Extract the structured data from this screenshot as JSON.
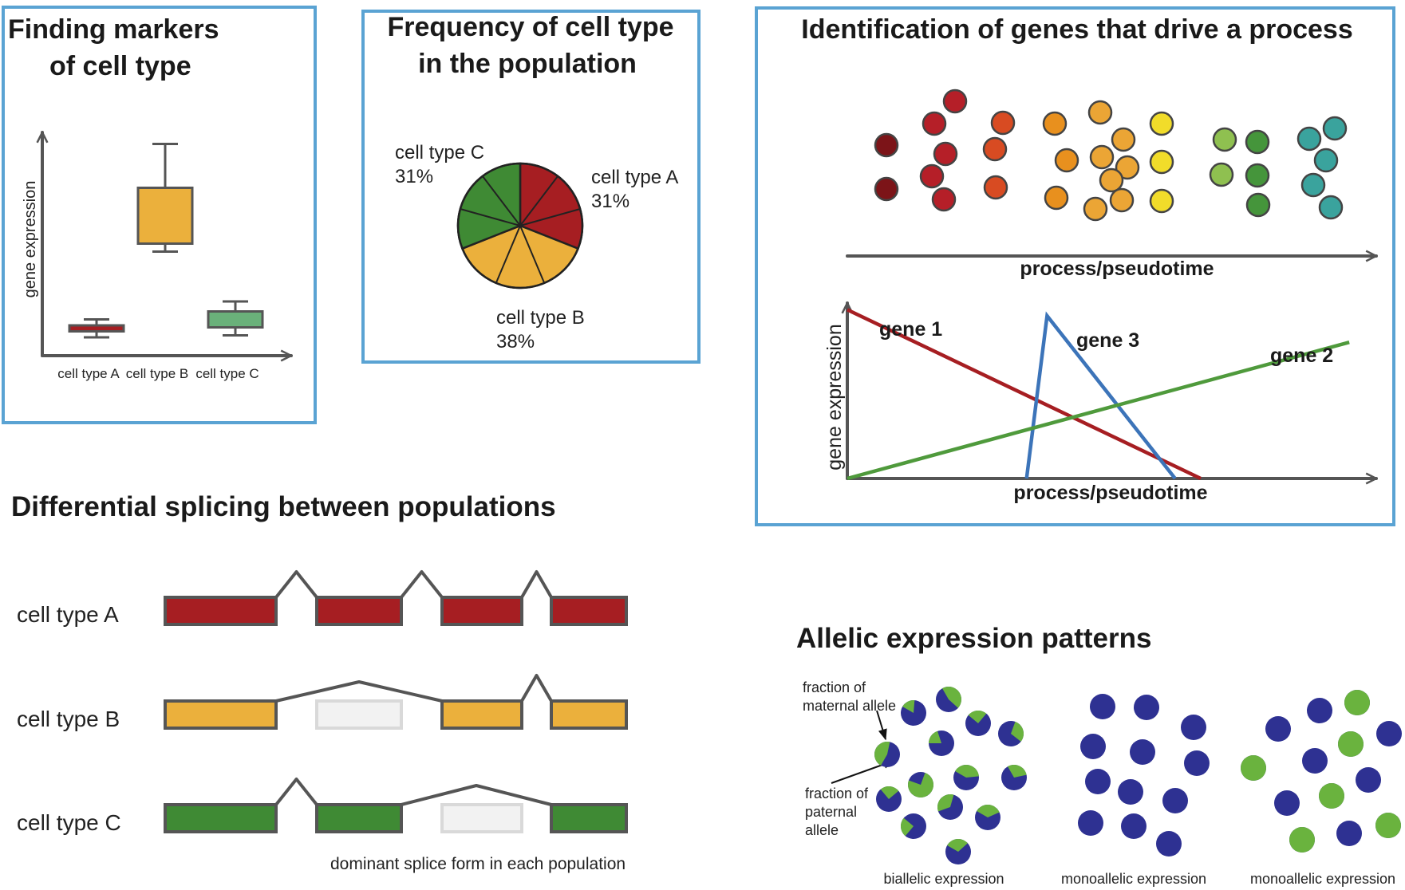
{
  "panels": {
    "markers": {
      "title_line1": "Finding markers",
      "title_line2": "of cell type",
      "ylabel": "gene expression",
      "categories": [
        "cell type A",
        "cell type B",
        "cell type C"
      ]
    },
    "frequency": {
      "title_line1": "Frequency of cell type",
      "title_line2": "in the population",
      "slices": [
        {
          "name": "cell type A",
          "pct": "31%",
          "value": 31,
          "color": "#a61e22"
        },
        {
          "name": "cell type B",
          "pct": "38%",
          "value": 38,
          "color": "#ebb03c"
        },
        {
          "name": "cell type C",
          "pct": "31%",
          "value": 31,
          "color": "#3f8a34"
        }
      ]
    },
    "process": {
      "title": "Identification of genes that drive a process",
      "xlabel_top": "process/pseudotime",
      "xlabel_bottom": "process/pseudotime",
      "ylabel": "gene expression",
      "genes": [
        {
          "name": "gene 1",
          "color": "#a61e22"
        },
        {
          "name": "gene 3",
          "color": "#3c74b9"
        },
        {
          "name": "gene 2",
          "color": "#4f9a3c"
        }
      ]
    },
    "splicing": {
      "title": "Differential splicing between populations",
      "rows": [
        {
          "label": "cell type A",
          "color": "#a61e22"
        },
        {
          "label": "cell type B",
          "color": "#ebb03c"
        },
        {
          "label": "cell type C",
          "color": "#3f8a34"
        }
      ],
      "caption": "dominant splice form in each population"
    },
    "allelic": {
      "title": "Allelic expression patterns",
      "maternal_label": [
        "fraction of",
        "maternal allele"
      ],
      "paternal_label": [
        "fraction of",
        "paternal",
        "allele"
      ],
      "groups": [
        "biallelic expression",
        "monoallelic expression",
        "monoallelic expression"
      ],
      "colors": {
        "paternal": "#2e3192",
        "maternal": "#6ab33e"
      }
    }
  },
  "chart_data": [
    {
      "type": "box",
      "title": "Finding markers of cell type",
      "categories": [
        "cell type A",
        "cell type B",
        "cell type C"
      ],
      "ylabel": "gene expression",
      "ylim": [
        0,
        100
      ],
      "series": [
        {
          "name": "cell type A",
          "min": 2,
          "q1": 5,
          "median": 6.5,
          "q3": 8,
          "max": 11,
          "color": "#a61e22"
        },
        {
          "name": "cell type B",
          "min": 45,
          "q1": 49,
          "median": 70,
          "q3": 77,
          "max": 99,
          "color": "#ebb03c"
        },
        {
          "name": "cell type C",
          "min": 3,
          "q1": 7,
          "median": 12,
          "q3": 15,
          "max": 20,
          "color": "#6ab17a"
        }
      ]
    },
    {
      "type": "pie",
      "title": "Frequency of cell type in the population",
      "categories": [
        "cell type A",
        "cell type B",
        "cell type C"
      ],
      "values": [
        31,
        38,
        31
      ]
    },
    {
      "type": "line",
      "title": "Identification of genes that drive a process",
      "xlabel": "process/pseudotime",
      "ylabel": "gene expression",
      "xlim": [
        0,
        100
      ],
      "ylim": [
        0,
        100
      ],
      "series": [
        {
          "name": "gene 1",
          "x": [
            0,
            69
          ],
          "y": [
            83,
            0
          ]
        },
        {
          "name": "gene 3",
          "x": [
            35,
            39,
            64
          ],
          "y": [
            0,
            80,
            0
          ]
        },
        {
          "name": "gene 2",
          "x": [
            0,
            98
          ],
          "y": [
            0,
            67
          ]
        }
      ]
    }
  ]
}
